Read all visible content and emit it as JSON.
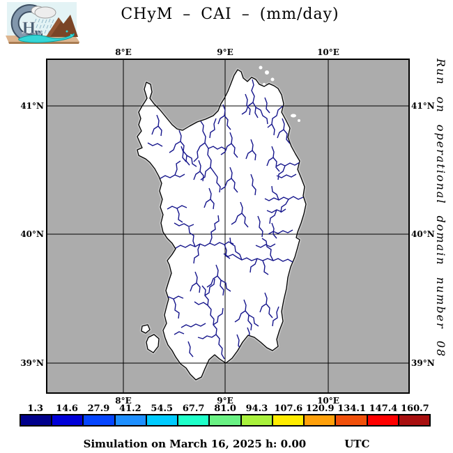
{
  "header": {
    "title": "CHyM – CAI – (mm/day)",
    "logo_alt": "CHyM"
  },
  "map": {
    "lon_labels": [
      "8°E",
      "9°E",
      "10°E"
    ],
    "lat_labels": [
      "41°N",
      "40°N",
      "39°N"
    ],
    "side_note": "Run on operational domain number 08",
    "sea_color": "#ACACAC",
    "land_color": "#FFFFFF",
    "coast_color": "#000000",
    "coast_fringe_color": "#C6C6C6",
    "river_color": "#16168C",
    "grid_color": "#000000"
  },
  "colorbar": {
    "labels": [
      "1.3",
      "14.6",
      "27.9",
      "41.2",
      "54.5",
      "67.7",
      "81.0",
      "94.3",
      "107.6",
      "120.9",
      "134.1",
      "147.4",
      "160.7"
    ],
    "colors": [
      "#00008B",
      "#0000D8",
      "#0545FF",
      "#1E8FFF",
      "#00CBFF",
      "#1FFFC9",
      "#69F183",
      "#A9F13C",
      "#FFEC00",
      "#FFA00A",
      "#F1500A",
      "#FF0000",
      "#A80F0F"
    ]
  },
  "footer": {
    "caption": "Simulation on March 16, 2025 h: 0.00",
    "timezone": "UTC"
  }
}
